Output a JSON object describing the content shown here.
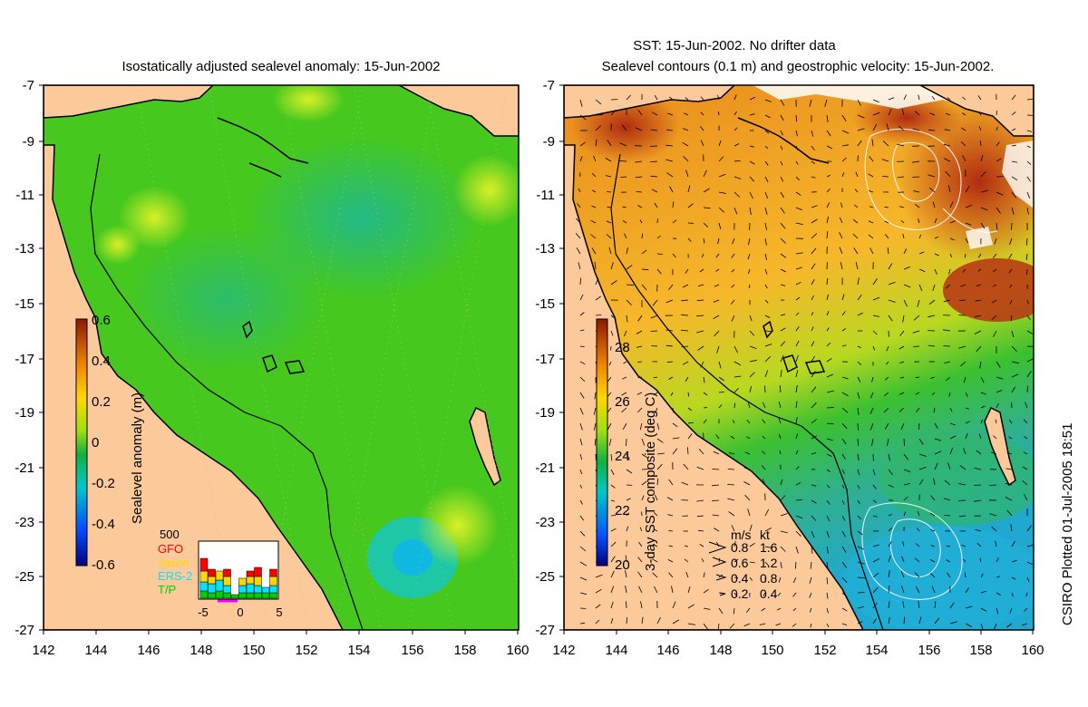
{
  "left_panel": {
    "title": "Isostatically adjusted sealevel anomaly: 15-Jun-2002",
    "y_ticks": [
      "-7",
      "-9",
      "-11",
      "-13",
      "-15",
      "-17",
      "-19",
      "-21",
      "-23",
      "-25",
      "-27"
    ],
    "x_ticks": [
      "142",
      "144",
      "146",
      "148",
      "150",
      "152",
      "154",
      "156",
      "158",
      "160"
    ],
    "colorbar": {
      "label": "Sealevel anomaly (m)",
      "ticks": [
        "0.6",
        "0.4",
        "0.2",
        "0",
        "-0.2",
        "-0.4",
        "-0.6"
      ],
      "range": [
        -0.6,
        0.6
      ]
    },
    "inset": {
      "top_label": "500",
      "legend": [
        {
          "name": "GFO",
          "color": "#ff0000"
        },
        {
          "name": "Jason",
          "color": "#ffd700"
        },
        {
          "name": "ERS-2",
          "color": "#00e5ff"
        },
        {
          "name": "T/P",
          "color": "#00d000"
        }
      ],
      "x_ticks": [
        "-5",
        "0",
        "5"
      ]
    }
  },
  "right_panel": {
    "title_line1": "SST: 15-Jun-2002. No drifter data",
    "title_line2": "Sealevel contours (0.1 m) and geostrophic velocity: 15-Jun-2002.",
    "y_ticks": [
      "-7",
      "-9",
      "-11",
      "-13",
      "-15",
      "-17",
      "-19",
      "-21",
      "-23",
      "-25",
      "-27"
    ],
    "x_ticks": [
      "142",
      "144",
      "146",
      "148",
      "150",
      "152",
      "154",
      "156",
      "158",
      "160"
    ],
    "colorbar": {
      "label": "3-day SST composite (deg C)",
      "ticks": [
        "28",
        "26",
        "24",
        "22",
        "20"
      ],
      "range": [
        20,
        29
      ]
    },
    "speed_legend": {
      "header_ms": "m/s",
      "header_kt": "kt",
      "rows": [
        {
          "ms": "0.8",
          "kt": "1.6"
        },
        {
          "ms": "0.6",
          "kt": "1.2"
        },
        {
          "ms": "0.4",
          "kt": "0.8"
        },
        {
          "ms": "0.2",
          "kt": "0.4"
        }
      ]
    }
  },
  "side_text": "CSIRO Plotted 01-Jul-2005 18:51",
  "colors": {
    "land": "#fcc99b",
    "ocean_green": "#46c81e",
    "sst_orange": "#f0a01e",
    "sst_red": "#c83c14"
  }
}
